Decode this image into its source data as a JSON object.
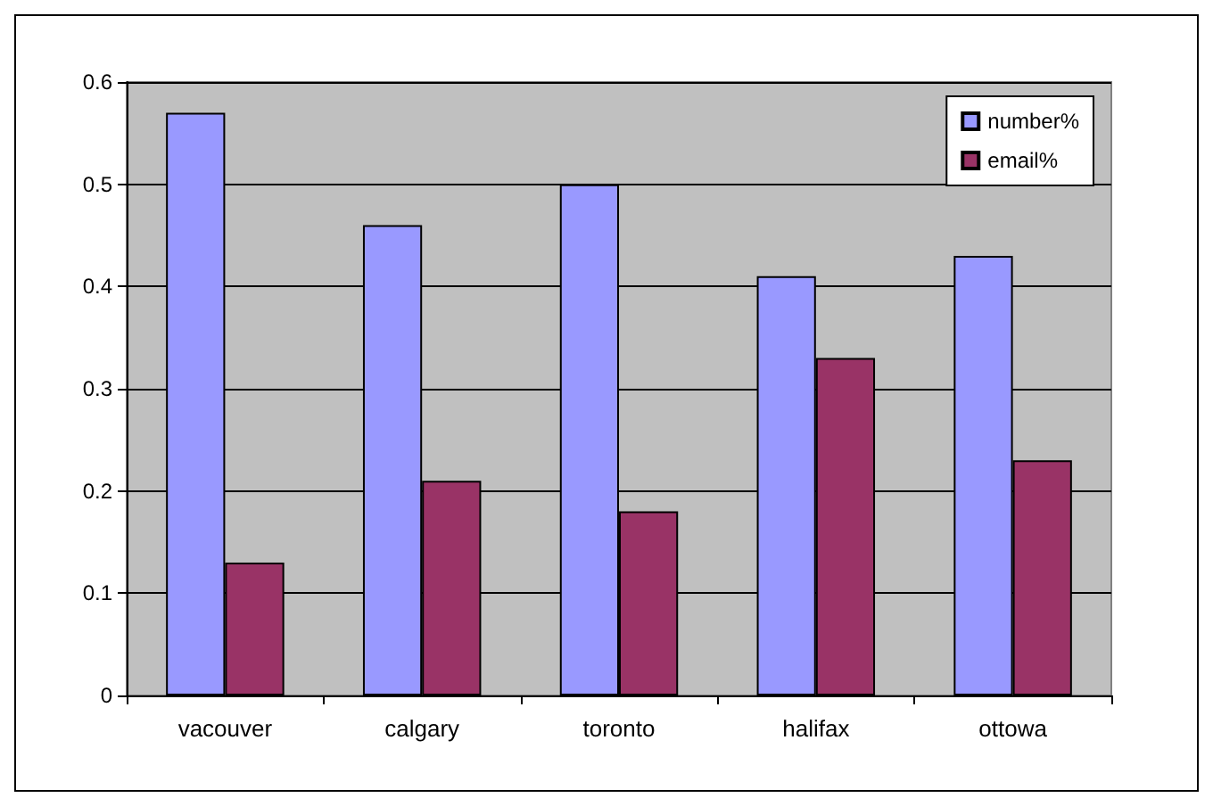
{
  "chart_data": {
    "type": "bar",
    "categories": [
      "vacouver",
      "calgary",
      "toronto",
      "halifax",
      "ottowa"
    ],
    "series": [
      {
        "name": "number%",
        "color": "#9999ff",
        "values": [
          0.57,
          0.46,
          0.5,
          0.41,
          0.43
        ]
      },
      {
        "name": "email%",
        "color": "#993366",
        "values": [
          0.13,
          0.21,
          0.18,
          0.33,
          0.23
        ]
      }
    ],
    "ylim": [
      0,
      0.6
    ],
    "yticks": [
      0,
      0.1,
      0.2,
      0.3,
      0.4,
      0.5,
      0.6
    ],
    "grid": "y",
    "legend": "top right"
  }
}
